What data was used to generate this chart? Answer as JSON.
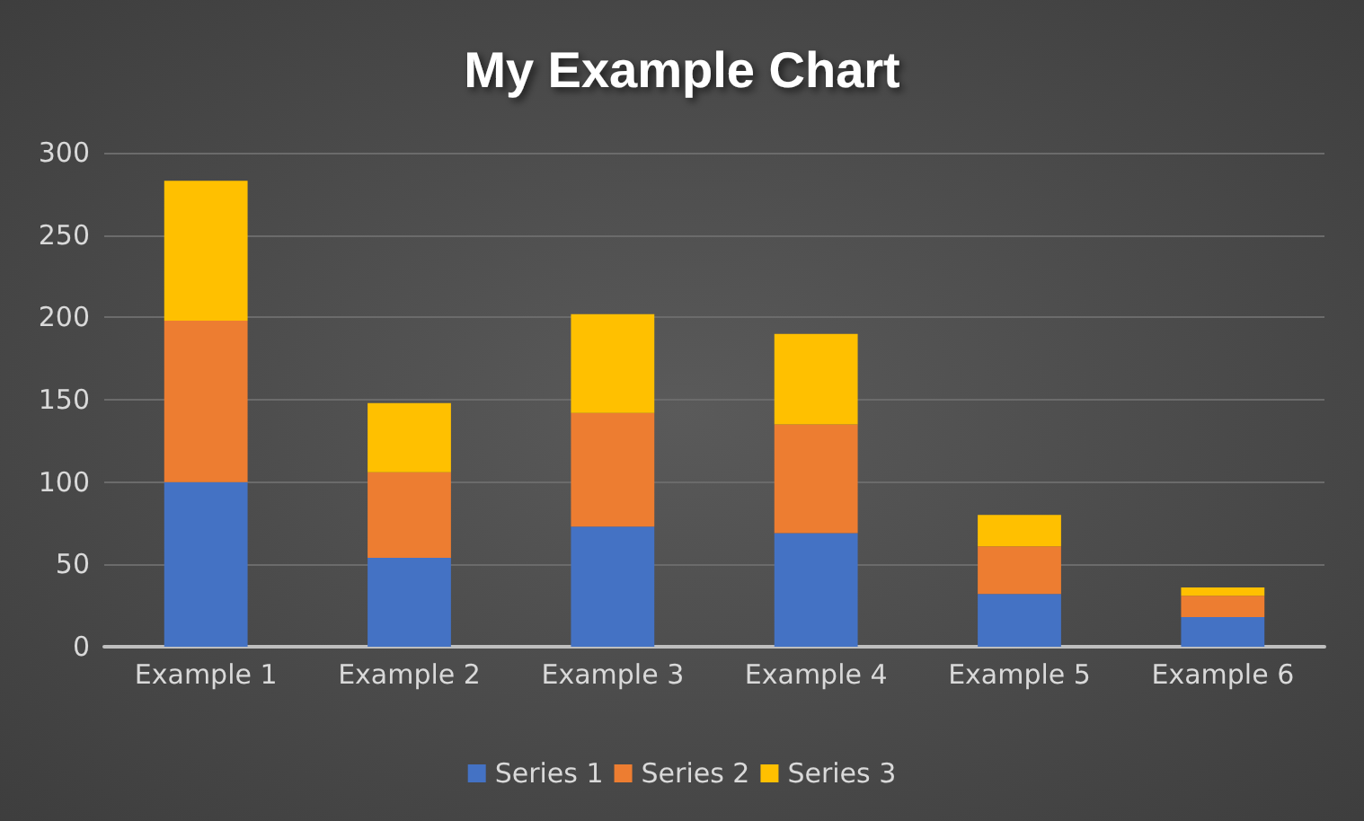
{
  "chart_data": {
    "type": "bar",
    "title": "My Example Chart",
    "stacked": true,
    "categories": [
      "Example 1",
      "Example 2",
      "Example 3",
      "Example 4",
      "Example 5",
      "Example 6"
    ],
    "series": [
      {
        "name": "Series 1",
        "color": "#4472c4",
        "values": [
          100,
          54,
          73,
          69,
          32,
          18
        ]
      },
      {
        "name": "Series 2",
        "color": "#ed7d31",
        "values": [
          98,
          52,
          69,
          66,
          29,
          13
        ]
      },
      {
        "name": "Series 3",
        "color": "#ffc000",
        "values": [
          85,
          42,
          60,
          55,
          19,
          5
        ]
      }
    ],
    "ylim": [
      0,
      300
    ],
    "yticks": [
      0,
      50,
      100,
      150,
      200,
      250,
      300
    ],
    "grid": "y",
    "legend": "bottom"
  }
}
